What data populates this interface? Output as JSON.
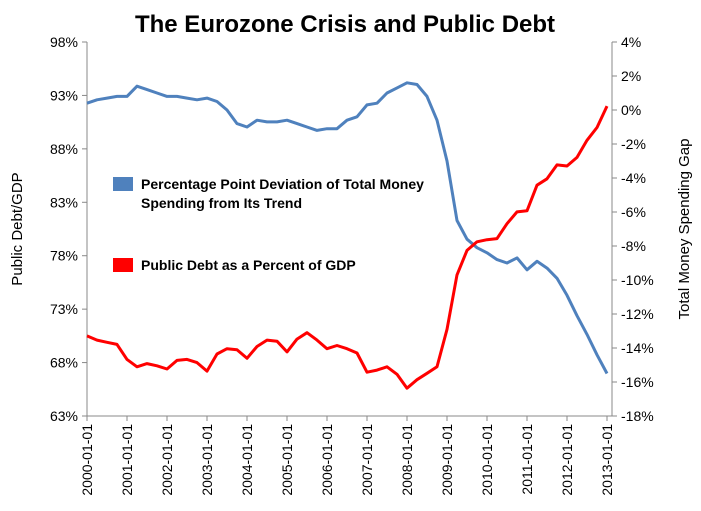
{
  "chart_data": {
    "type": "line",
    "title": "The Eurozone Crisis and Public Debt",
    "ylabel": "Public Debt/GDP",
    "y2label": "Total Money Spending Gap",
    "x": [
      "2000-01-01",
      "2000-04-01",
      "2000-07-01",
      "2000-10-01",
      "2001-01-01",
      "2001-04-01",
      "2001-07-01",
      "2001-10-01",
      "2002-01-01",
      "2002-04-01",
      "2002-07-01",
      "2002-10-01",
      "2003-01-01",
      "2003-04-01",
      "2003-07-01",
      "2003-10-01",
      "2004-01-01",
      "2004-04-01",
      "2004-07-01",
      "2004-10-01",
      "2005-01-01",
      "2005-04-01",
      "2005-07-01",
      "2005-10-01",
      "2006-01-01",
      "2006-04-01",
      "2006-07-01",
      "2006-10-01",
      "2007-01-01",
      "2007-04-01",
      "2007-07-01",
      "2007-10-01",
      "2008-01-01",
      "2008-04-01",
      "2008-07-01",
      "2008-10-01",
      "2009-01-01",
      "2009-04-01",
      "2009-07-01",
      "2009-10-01",
      "2010-01-01",
      "2010-04-01",
      "2010-07-01",
      "2010-10-01",
      "2011-01-01",
      "2011-04-01",
      "2011-07-01",
      "2011-10-01",
      "2012-01-01",
      "2012-04-01",
      "2012-07-01",
      "2012-10-01",
      "2013-01-01"
    ],
    "xticks": [
      "2000-01-01",
      "2001-01-01",
      "2002-01-01",
      "2003-01-01",
      "2004-01-01",
      "2005-01-01",
      "2006-01-01",
      "2007-01-01",
      "2008-01-01",
      "2009-01-01",
      "2010-01-01",
      "2011-01-01",
      "2012-01-01",
      "2013-01-01"
    ],
    "series": [
      {
        "name": "Percentage Point Deviation of Total Money Spending from Its Trend",
        "color": "#4f81bd",
        "axis": "y2",
        "values": [
          0.4,
          0.6,
          0.7,
          0.8,
          0.8,
          1.4,
          1.2,
          1.0,
          0.8,
          0.8,
          0.7,
          0.6,
          0.7,
          0.5,
          0.0,
          -0.8,
          -1.0,
          -0.6,
          -0.7,
          -0.7,
          -0.6,
          -0.8,
          -1.0,
          -1.2,
          -1.1,
          -1.1,
          -0.6,
          -0.4,
          0.3,
          0.4,
          1.0,
          1.3,
          1.6,
          1.5,
          0.8,
          -0.6,
          -3.0,
          -6.5,
          -7.6,
          -8.1,
          -8.4,
          -8.8,
          -9.0,
          -8.7,
          -9.4,
          -8.9,
          -9.3,
          -9.9,
          -10.9,
          -12.1,
          -13.2,
          -14.4,
          -15.5
        ]
      },
      {
        "name": "Public Debt as a Percent of GDP",
        "color": "#ff0000",
        "values": [
          70.5,
          70.1,
          69.9,
          69.7,
          68.3,
          67.6,
          67.9,
          67.7,
          67.4,
          68.2,
          68.3,
          68.0,
          67.2,
          68.8,
          69.3,
          69.2,
          68.4,
          69.5,
          70.1,
          70.0,
          69.0,
          70.2,
          70.8,
          70.1,
          69.3,
          69.6,
          69.3,
          68.9,
          67.1,
          67.3,
          67.6,
          66.9,
          65.6,
          66.4,
          67.0,
          67.6,
          71.1,
          76.2,
          78.5,
          79.3,
          79.5,
          79.6,
          81.0,
          82.1,
          82.2,
          84.6,
          85.2,
          86.5,
          86.4,
          87.2,
          88.8,
          90.0,
          92.0
        ]
      }
    ],
    "ylim": [
      63,
      98
    ],
    "yticks": [
      {
        "value": 63,
        "label": "63%"
      },
      {
        "value": 68,
        "label": "68%"
      },
      {
        "value": 73,
        "label": "73%"
      },
      {
        "value": 78,
        "label": "78%"
      },
      {
        "value": 83,
        "label": "83%"
      },
      {
        "value": 88,
        "label": "88%"
      },
      {
        "value": 93,
        "label": "93%"
      },
      {
        "value": 98,
        "label": "98%"
      }
    ],
    "y2lim": [
      -18,
      4
    ],
    "y2ticks": [
      {
        "value": -18,
        "label": "-18%"
      },
      {
        "value": -16,
        "label": "-16%"
      },
      {
        "value": -14,
        "label": "-14%"
      },
      {
        "value": -12,
        "label": "-12%"
      },
      {
        "value": -10,
        "label": "-10%"
      },
      {
        "value": -8,
        "label": "-8%"
      },
      {
        "value": -6,
        "label": "-6%"
      },
      {
        "value": -4,
        "label": "-4%"
      },
      {
        "value": -2,
        "label": "-2%"
      },
      {
        "value": 0,
        "label": "0%"
      },
      {
        "value": 2,
        "label": "2%"
      },
      {
        "value": 4,
        "label": "4%"
      }
    ],
    "grid": false
  }
}
